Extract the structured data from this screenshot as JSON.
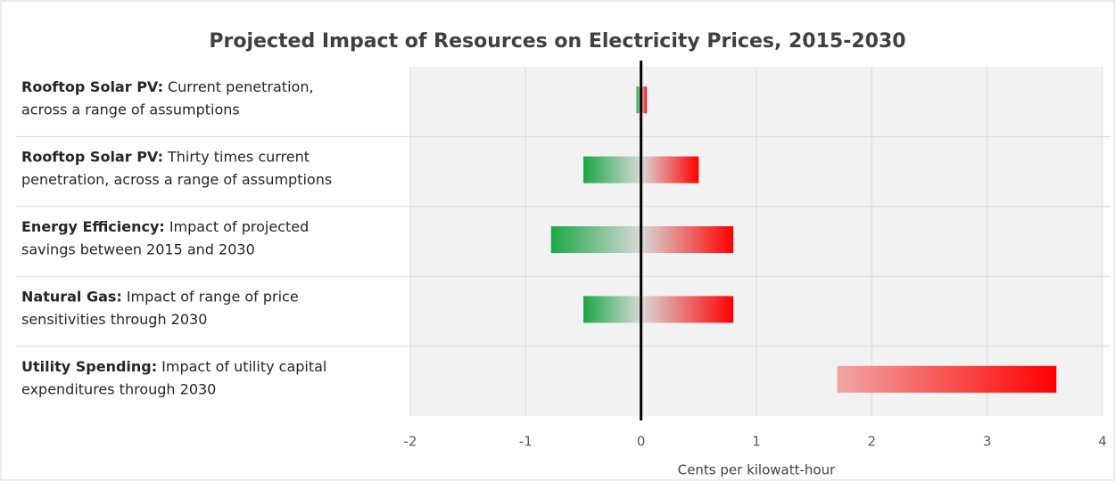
{
  "chart_data": {
    "type": "range-bar",
    "title": "Projected Impact of Resources on Electricity Prices, 2015-2030",
    "categories": [
      "Rooftop Solar PV:",
      "Rooftop Solar PV:",
      "Energy Efficiency:",
      "Natural Gas:",
      "Utility Spending:"
    ],
    "descriptions": [
      [
        "Current penetration,",
        "across a range of assumptions"
      ],
      [
        "Thirty times current",
        "penetration, across a range of assumptions"
      ],
      [
        "Impact of projected",
        "savings between 2015 and 2030"
      ],
      [
        "Impact of range of price",
        "sensitivities through 2030"
      ],
      [
        "Impact of utility capital",
        "expenditures through 2030"
      ]
    ],
    "low": [
      -0.04,
      -0.5,
      -0.78,
      -0.5,
      1.7
    ],
    "high": [
      0.05,
      0.5,
      0.8,
      0.8,
      3.6
    ],
    "low_color": "#1aa845",
    "high_color": "#ff0000",
    "xlabel": "Cents per kilowatt-hour",
    "xlim": [
      -2,
      4
    ],
    "xticks": [
      -2,
      -1,
      0,
      1,
      2,
      3,
      4
    ],
    "grid": true
  }
}
